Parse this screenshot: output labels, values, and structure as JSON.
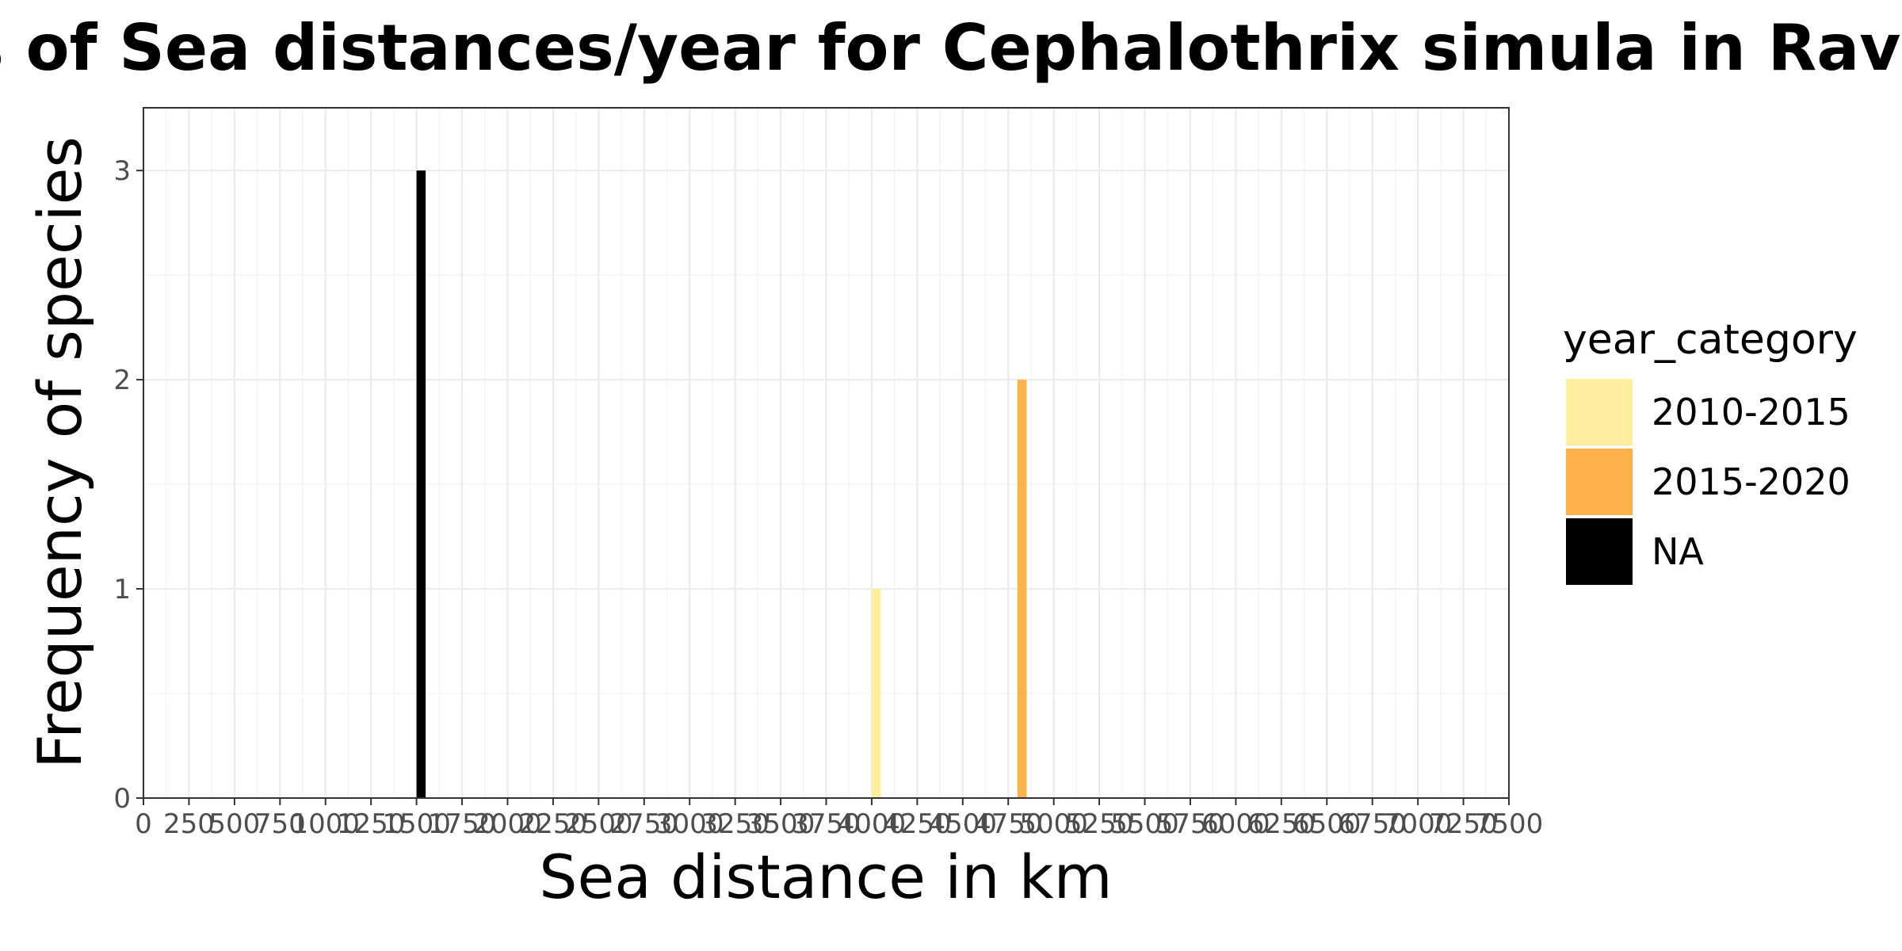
{
  "chart_data": {
    "type": "bar",
    "title": "Frequencies of Sea distances/year for Cephalothrix simula in Ravenna",
    "xlabel": "Sea distance in km",
    "ylabel": "Frequency of species",
    "xlim": [
      0,
      7500
    ],
    "ylim": [
      0,
      3.3
    ],
    "x_ticks": [
      0,
      250,
      500,
      750,
      1000,
      1250,
      1500,
      1750,
      2000,
      2250,
      2500,
      2750,
      3000,
      3250,
      3500,
      3750,
      4000,
      4250,
      4500,
      4750,
      5000,
      5250,
      5500,
      5750,
      6000,
      6250,
      6500,
      6750,
      7000,
      7250,
      7500
    ],
    "x_tick_labels": [
      "0",
      "250",
      "500",
      "750",
      "1000",
      "1250",
      "1500",
      "1750",
      "2000",
      "2250",
      "2500",
      "2750",
      "3000",
      "3250",
      "3500",
      "3750",
      "4000",
      "4250",
      "4500",
      "4750",
      "5000",
      "5250",
      "5500",
      "5750",
      "6000",
      "6250",
      "6500",
      "6750",
      "7000",
      "7250",
      "7500"
    ],
    "y_ticks": [
      0,
      1,
      2,
      3
    ],
    "y_tick_labels": [
      "0",
      "1",
      "2",
      "3"
    ],
    "bin_width": 50,
    "grid": true,
    "legend_position": "right",
    "legend_title": "year_category",
    "series": [
      {
        "name": "2010-2015",
        "color": "#FFEDA0",
        "bars": [
          {
            "x": 4025,
            "value": 1
          }
        ]
      },
      {
        "name": "2015-2020",
        "color": "#FEB24C",
        "bars": [
          {
            "x": 4825,
            "value": 2
          }
        ]
      },
      {
        "name": "NA",
        "color": "#000000",
        "bars": [
          {
            "x": 1525,
            "value": 3
          }
        ]
      }
    ]
  }
}
